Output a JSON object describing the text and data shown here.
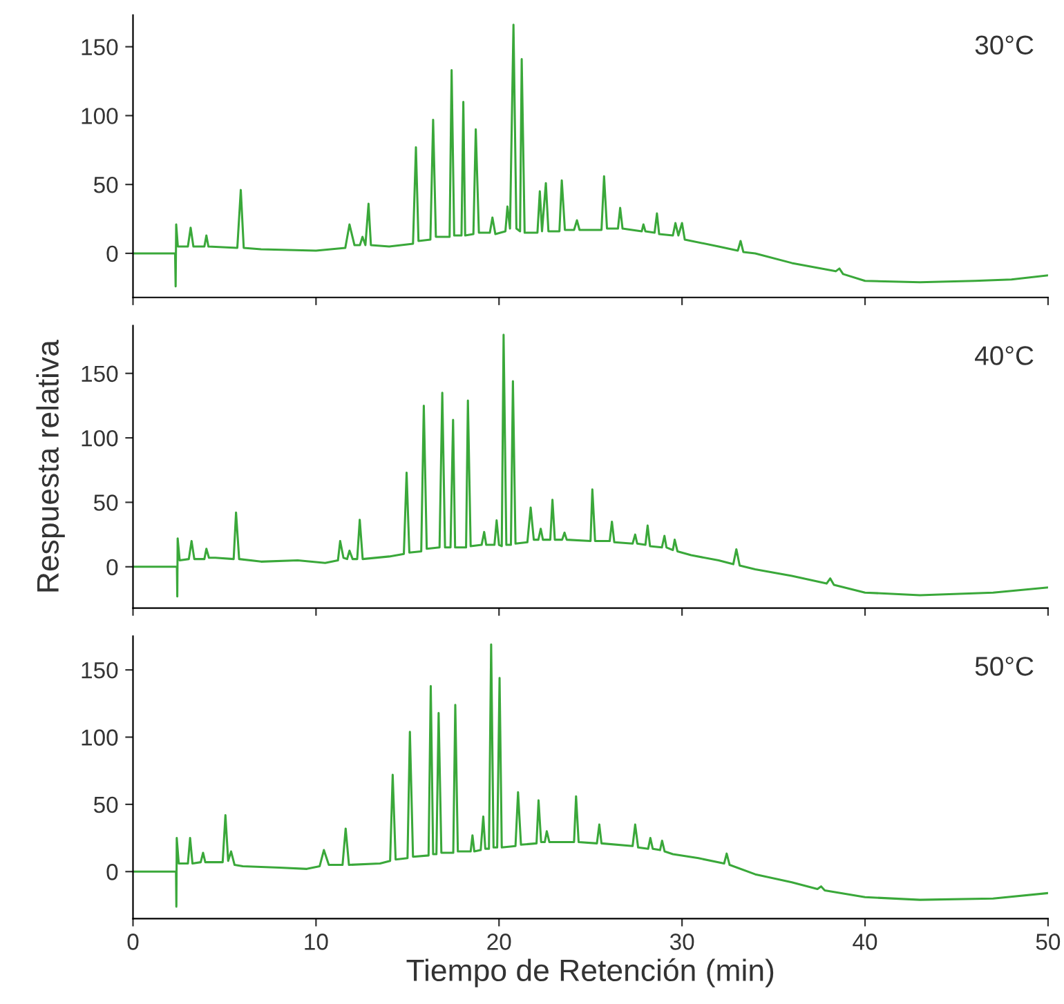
{
  "chart_data": [
    {
      "type": "line",
      "annotations": [
        "30°C"
      ],
      "xlim": [
        0,
        50
      ],
      "xticks": [
        0,
        10,
        20,
        30,
        40,
        50
      ],
      "ylim": [
        -32,
        173
      ],
      "yticks": [
        0,
        50,
        100,
        150
      ],
      "tick_labels": "y",
      "grid": false,
      "legend": false,
      "series": [
        {
          "color": "#3aa83a",
          "x": [
            0,
            2.3,
            2.33,
            2.36,
            2.45,
            3.0,
            3.15,
            3.3,
            3.9,
            4.01,
            4.12,
            5.7,
            5.89,
            6.05,
            7,
            10,
            11.6,
            11.83,
            12.1,
            12.4,
            12.54,
            12.7,
            12.87,
            13.0,
            14,
            15.3,
            15.46,
            15.6,
            16.25,
            16.4,
            16.55,
            17.3,
            17.41,
            17.55,
            17.95,
            18.05,
            18.15,
            18.6,
            18.73,
            18.9,
            19.5,
            19.64,
            19.8,
            20.35,
            20.46,
            20.6,
            20.79,
            20.95,
            21.15,
            21.24,
            21.4,
            22.1,
            22.23,
            22.35,
            22.56,
            22.7,
            23.3,
            23.43,
            23.6,
            24.1,
            24.26,
            24.4,
            25.6,
            25.74,
            25.9,
            26.5,
            26.62,
            26.75,
            27.8,
            27.89,
            28.0,
            28.5,
            28.63,
            28.75,
            29.5,
            29.64,
            29.8,
            30.0,
            30.15,
            32,
            33.05,
            33.2,
            33.35,
            34,
            36,
            38.4,
            38.6,
            38.8,
            40,
            43,
            46,
            48,
            50
          ],
          "values": [
            0,
            0,
            -24,
            21,
            5,
            5,
            18.6,
            5,
            5,
            13,
            5,
            4,
            46,
            4,
            3,
            2,
            4,
            21,
            6,
            6,
            12,
            6,
            36,
            6,
            5,
            7,
            77,
            9,
            10,
            97,
            12,
            12,
            133,
            13,
            13,
            110,
            13,
            14,
            90,
            15,
            15,
            26,
            14,
            16,
            34,
            18,
            166,
            18,
            16,
            141,
            15,
            15,
            45,
            16,
            51,
            16,
            16,
            53,
            17,
            17,
            24,
            17,
            17,
            56,
            18,
            18,
            33,
            18,
            16,
            21,
            16,
            15,
            29,
            14,
            13,
            22,
            13,
            22,
            10,
            5,
            2,
            9,
            1,
            0,
            -7,
            -13,
            -11,
            -15,
            -20,
            -21,
            -20,
            -19,
            -16
          ]
        }
      ]
    },
    {
      "type": "line",
      "annotations": [
        "40°C"
      ],
      "ylabel": "Respuesta relativa",
      "xlim": [
        0,
        50
      ],
      "xticks": [
        0,
        10,
        20,
        30,
        40,
        50
      ],
      "ylim": [
        -32,
        187
      ],
      "yticks": [
        0,
        50,
        100,
        150
      ],
      "tick_labels": "y",
      "grid": false,
      "legend": false,
      "series": [
        {
          "color": "#3aa83a",
          "x": [
            0,
            2.4,
            2.42,
            2.44,
            2.55,
            3.05,
            3.2,
            3.35,
            3.9,
            4.01,
            4.15,
            4.5,
            5.5,
            5.63,
            5.8,
            7,
            9,
            10.5,
            11.2,
            11.32,
            11.5,
            11.7,
            11.83,
            12.0,
            12.25,
            12.39,
            12.55,
            14,
            14.8,
            14.95,
            15.1,
            15.75,
            15.89,
            16.05,
            16.75,
            16.9,
            17.05,
            17.35,
            17.49,
            17.6,
            18.2,
            18.3,
            18.45,
            19.05,
            19.19,
            19.3,
            19.75,
            19.87,
            20.0,
            20.15,
            20.25,
            20.4,
            20.65,
            20.76,
            20.9,
            21.55,
            21.73,
            21.9,
            22.15,
            22.28,
            22.4,
            22.8,
            22.92,
            23.05,
            23.45,
            23.58,
            23.7,
            25.0,
            25.1,
            25.25,
            26.05,
            26.17,
            26.3,
            27.3,
            27.44,
            27.55,
            28.0,
            28.12,
            28.25,
            28.9,
            29.04,
            29.15,
            29.5,
            29.6,
            29.75,
            30.5,
            32,
            32.8,
            32.97,
            33.15,
            34,
            36,
            37.9,
            38.1,
            38.3,
            40,
            43,
            47,
            50
          ],
          "values": [
            0,
            0,
            -23,
            22,
            5,
            6,
            20,
            6,
            6,
            14,
            7,
            7,
            6,
            42,
            6,
            4,
            5,
            3,
            5,
            20,
            7,
            6,
            12.5,
            6,
            6,
            36.5,
            6,
            8,
            10,
            73,
            11,
            12,
            125,
            14,
            15,
            135,
            15,
            15,
            114,
            15,
            15,
            129,
            16,
            17,
            27,
            17,
            17,
            36,
            17,
            16,
            180,
            17,
            17,
            144,
            18,
            19,
            46,
            21,
            21,
            29.5,
            21,
            21,
            52,
            21,
            21,
            26.5,
            21,
            20,
            60,
            20,
            20,
            35,
            19,
            18,
            25,
            18,
            17,
            32,
            16,
            15,
            24,
            15,
            13,
            21,
            12,
            9,
            5,
            2,
            13.6,
            1,
            -2,
            -7,
            -13,
            -9,
            -14,
            -20,
            -22,
            -20,
            -16
          ]
        }
      ]
    },
    {
      "type": "line",
      "annotations": [
        "50°C"
      ],
      "xlabel": "Tiempo de Retención (min)",
      "xlim": [
        0,
        50
      ],
      "xticks": [
        0,
        10,
        20,
        30,
        40,
        50
      ],
      "ylim": [
        -35,
        175
      ],
      "yticks": [
        0,
        50,
        100,
        150
      ],
      "grid": false,
      "legend": false,
      "series": [
        {
          "color": "#3aa83a",
          "x": [
            0,
            2.35,
            2.37,
            2.39,
            2.5,
            3.0,
            3.12,
            3.25,
            3.7,
            3.83,
            3.95,
            4.9,
            5.05,
            5.2,
            5.36,
            5.55,
            6,
            8,
            9.5,
            10.2,
            10.43,
            10.7,
            11.45,
            11.62,
            11.8,
            13.5,
            14.05,
            14.19,
            14.35,
            15.0,
            15.13,
            15.3,
            16.15,
            16.27,
            16.4,
            16.58,
            16.7,
            16.85,
            17.5,
            17.61,
            17.75,
            18.45,
            18.55,
            18.65,
            19.0,
            19.14,
            19.25,
            19.45,
            19.57,
            19.7,
            19.9,
            20.03,
            20.15,
            20.9,
            21.04,
            21.2,
            22.05,
            22.16,
            22.3,
            22.5,
            22.61,
            22.75,
            24.1,
            24.21,
            24.35,
            25.35,
            25.48,
            25.6,
            27.3,
            27.44,
            27.6,
            28.15,
            28.27,
            28.4,
            28.8,
            28.91,
            29.05,
            29.5,
            30.9,
            32.3,
            32.44,
            32.6,
            34,
            36,
            37.4,
            37.6,
            37.8,
            40,
            43,
            47,
            50
          ],
          "values": [
            0,
            0,
            -26,
            25,
            6,
            6,
            25,
            6,
            7,
            14,
            7,
            7,
            42,
            8,
            15,
            5,
            4,
            3,
            2,
            4,
            16,
            5,
            5,
            32,
            5,
            6,
            8,
            72,
            9,
            10,
            104,
            11,
            12,
            138,
            13,
            13,
            118,
            14,
            14,
            124,
            15,
            15,
            27,
            15,
            16,
            41,
            17,
            17,
            169,
            18,
            18,
            144,
            18,
            19,
            59,
            20,
            21,
            53,
            22,
            22,
            30,
            22,
            22,
            56,
            22,
            21,
            35,
            21,
            19,
            35,
            18,
            17,
            25,
            17,
            16,
            23,
            15,
            13,
            10,
            6,
            13.4,
            5,
            -2,
            -8,
            -13,
            -11,
            -14,
            -19,
            -21,
            -20,
            -16
          ]
        }
      ]
    }
  ]
}
